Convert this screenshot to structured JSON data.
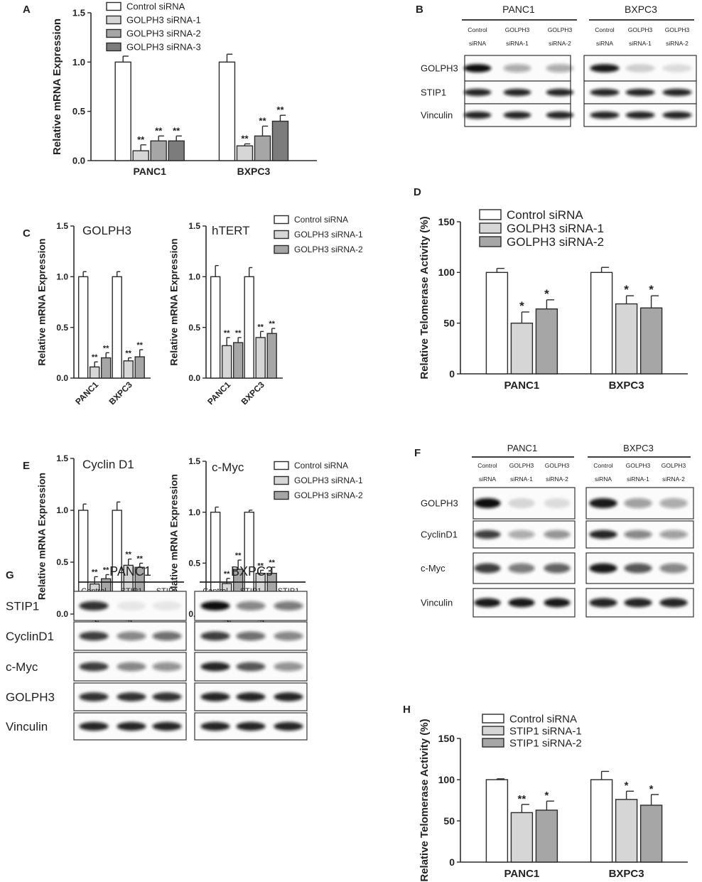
{
  "colors": {
    "control": "#ffffff",
    "sirna1": "#d6d6d6",
    "sirna2": "#a6a6a6",
    "sirna3": "#7c7c7c",
    "stroke": "#2b2b2b"
  },
  "chart_data": [
    {
      "id": "A",
      "type": "bar",
      "ylabel": "Relative mRNA Expression",
      "categories": [
        "PANC1",
        "BXPC3"
      ],
      "ylim": [
        0,
        1.5
      ],
      "yticks": [
        "0.0",
        "0.5",
        "1.0",
        "1.5"
      ],
      "legend": [
        "Control siRNA",
        "GOLPH3 siRNA-1",
        "GOLPH3 siRNA-2",
        "GOLPH3 siRNA-3"
      ],
      "series": [
        {
          "name": "Control siRNA",
          "values": [
            1.0,
            1.0
          ],
          "errors": [
            0.06,
            0.08
          ],
          "stars": [
            "",
            ""
          ]
        },
        {
          "name": "GOLPH3 siRNA-1",
          "values": [
            0.1,
            0.15
          ],
          "errors": [
            0.06,
            0.02
          ],
          "stars": [
            "**",
            "**"
          ]
        },
        {
          "name": "GOLPH3 siRNA-2",
          "values": [
            0.2,
            0.25
          ],
          "errors": [
            0.05,
            0.1
          ],
          "stars": [
            "**",
            "**"
          ]
        },
        {
          "name": "GOLPH3 siRNA-3",
          "values": [
            0.2,
            0.4
          ],
          "errors": [
            0.05,
            0.06
          ],
          "stars": [
            "**",
            "**"
          ]
        }
      ]
    },
    {
      "id": "C1",
      "type": "bar",
      "title": "GOLPH3",
      "ylabel": "Relative mRNA Expression",
      "categories": [
        "PANC1",
        "BXPC3"
      ],
      "ylim": [
        0,
        1.5
      ],
      "yticks": [
        "0.0",
        "0.5",
        "1.0",
        "1.5"
      ],
      "series": [
        {
          "name": "Control siRNA",
          "values": [
            1.0,
            1.0
          ],
          "errors": [
            0.05,
            0.05
          ],
          "stars": [
            "",
            ""
          ]
        },
        {
          "name": "GOLPH3 siRNA-1",
          "values": [
            0.11,
            0.17
          ],
          "errors": [
            0.05,
            0.03
          ],
          "stars": [
            "**",
            "**"
          ]
        },
        {
          "name": "GOLPH3 siRNA-2",
          "values": [
            0.2,
            0.21
          ],
          "errors": [
            0.05,
            0.07
          ],
          "stars": [
            "**",
            "**"
          ]
        }
      ]
    },
    {
      "id": "C2",
      "type": "bar",
      "title": "hTERT",
      "ylabel": "Relative mRNA Expression",
      "categories": [
        "PANC1",
        "BXPC3"
      ],
      "ylim": [
        0,
        1.5
      ],
      "yticks": [
        "0.0",
        "0.5",
        "1.0",
        "1.5"
      ],
      "legend": [
        "Control siRNA",
        "GOLPH3 siRNA-1",
        "GOLPH3 siRNA-2"
      ],
      "series": [
        {
          "name": "Control siRNA",
          "values": [
            1.0,
            1.0
          ],
          "errors": [
            0.11,
            0.09
          ],
          "stars": [
            "",
            ""
          ]
        },
        {
          "name": "GOLPH3 siRNA-1",
          "values": [
            0.32,
            0.4
          ],
          "errors": [
            0.08,
            0.06
          ],
          "stars": [
            "**",
            "**"
          ]
        },
        {
          "name": "GOLPH3 siRNA-2",
          "values": [
            0.35,
            0.44
          ],
          "errors": [
            0.05,
            0.05
          ],
          "stars": [
            "**",
            "**"
          ]
        }
      ]
    },
    {
      "id": "D",
      "type": "bar",
      "ylabel": "Relative Telomerase Activity (%)",
      "categories": [
        "PANC1",
        "BXPC3"
      ],
      "ylim": [
        0,
        150
      ],
      "yticks": [
        "0",
        "50",
        "100",
        "150"
      ],
      "legend": [
        "Control siRNA",
        "GOLPH3 siRNA-1",
        "GOLPH3 siRNA-2"
      ],
      "series": [
        {
          "name": "Control siRNA",
          "values": [
            100,
            100
          ],
          "errors": [
            4,
            5
          ],
          "stars": [
            "",
            ""
          ]
        },
        {
          "name": "GOLPH3 siRNA-1",
          "values": [
            50,
            69
          ],
          "errors": [
            11,
            8
          ],
          "stars": [
            "*",
            "*"
          ]
        },
        {
          "name": "GOLPH3 siRNA-2",
          "values": [
            64,
            65
          ],
          "errors": [
            9,
            12
          ],
          "stars": [
            "*",
            "*"
          ]
        }
      ]
    },
    {
      "id": "E1",
      "type": "bar",
      "title": "Cyclin D1",
      "ylabel": "Relative mRNA Expression",
      "categories": [
        "PANC1",
        "BXPC3"
      ],
      "ylim": [
        0,
        1.5
      ],
      "yticks": [
        "0.0",
        "0.5",
        "1.0",
        "1.5"
      ],
      "series": [
        {
          "name": "Control siRNA",
          "values": [
            1.0,
            1.0
          ],
          "errors": [
            0.06,
            0.08
          ],
          "stars": [
            "",
            ""
          ]
        },
        {
          "name": "GOLPH3 siRNA-1",
          "values": [
            0.29,
            0.47
          ],
          "errors": [
            0.07,
            0.06
          ],
          "stars": [
            "**",
            "**"
          ]
        },
        {
          "name": "GOLPH3 siRNA-2",
          "values": [
            0.34,
            0.45
          ],
          "errors": [
            0.04,
            0.04
          ],
          "stars": [
            "**",
            "**"
          ]
        }
      ]
    },
    {
      "id": "E2",
      "type": "bar",
      "title": "c-Myc",
      "ylabel": "Relative mRNA Expression",
      "categories": [
        "PANC1",
        "BXPC3"
      ],
      "ylim": [
        0,
        1.5
      ],
      "yticks": [
        "0.0",
        "0.5",
        "1.0",
        "1.5"
      ],
      "legend": [
        "Control siRNA",
        "GOLPH3 siRNA-1",
        "GOLPH3 siRNA-2"
      ],
      "series": [
        {
          "name": "Control siRNA",
          "values": [
            1.0,
            1.0
          ],
          "errors": [
            0.05,
            0.02
          ],
          "stars": [
            "",
            ""
          ]
        },
        {
          "name": "GOLPH3 siRNA-1",
          "values": [
            0.3,
            0.4
          ],
          "errors": [
            0.05,
            0.03
          ],
          "stars": [
            "**",
            "**"
          ]
        },
        {
          "name": "GOLPH3 siRNA-2",
          "values": [
            0.44,
            0.4
          ],
          "errors": [
            0.09,
            0.06
          ],
          "stars": [
            "**",
            "**"
          ]
        }
      ]
    },
    {
      "id": "H",
      "type": "bar",
      "ylabel": "Relative Telomerase Activity (%)",
      "categories": [
        "PANC1",
        "BXPC3"
      ],
      "ylim": [
        0,
        150
      ],
      "yticks": [
        "0",
        "50",
        "100",
        "150"
      ],
      "legend": [
        "Control siRNA",
        "STIP1 siRNA-1",
        "STIP1 siRNA-2"
      ],
      "series": [
        {
          "name": "Control siRNA",
          "values": [
            100,
            100
          ],
          "errors": [
            1,
            10
          ],
          "stars": [
            "",
            ""
          ]
        },
        {
          "name": "STIP1 siRNA-1",
          "values": [
            60,
            76
          ],
          "errors": [
            10,
            10
          ],
          "stars": [
            "**",
            "*"
          ]
        },
        {
          "name": "STIP1 siRNA-2",
          "values": [
            63,
            69
          ],
          "errors": [
            11,
            13
          ],
          "stars": [
            "*",
            "*"
          ]
        }
      ]
    }
  ],
  "blots": [
    {
      "id": "B",
      "cells": [
        "PANC1",
        "BXPC3"
      ],
      "lanes": [
        [
          "Control",
          "siRNA"
        ],
        [
          "GOLPH3",
          "siRNA-1"
        ],
        [
          "GOLPH3",
          "siRNA-2"
        ]
      ],
      "rows": [
        {
          "label": "GOLPH3",
          "panc1": [
            1.0,
            0.35,
            0.35
          ],
          "bxpc3": [
            0.95,
            0.18,
            0.12
          ]
        },
        {
          "label": "STIP1",
          "panc1": [
            0.9,
            0.9,
            0.9
          ],
          "bxpc3": [
            0.9,
            0.9,
            0.9
          ]
        },
        {
          "label": "Vinculin",
          "panc1": [
            0.9,
            0.9,
            0.9
          ],
          "bxpc3": [
            0.9,
            0.9,
            0.9
          ]
        }
      ]
    },
    {
      "id": "F",
      "cells": [
        "PANC1",
        "BXPC3"
      ],
      "lanes": [
        [
          "Control",
          "siRNA"
        ],
        [
          "GOLPH3",
          "siRNA-1"
        ],
        [
          "GOLPH3",
          "siRNA-2"
        ]
      ],
      "rows": [
        {
          "label": "GOLPH3",
          "panc1": [
            1.0,
            0.15,
            0.12
          ],
          "bxpc3": [
            0.95,
            0.4,
            0.35
          ]
        },
        {
          "label": "CyclinD1",
          "panc1": [
            0.8,
            0.35,
            0.45
          ],
          "bxpc3": [
            0.9,
            0.5,
            0.4
          ]
        },
        {
          "label": "c-Myc",
          "panc1": [
            0.8,
            0.55,
            0.65
          ],
          "bxpc3": [
            0.95,
            0.7,
            0.5
          ]
        },
        {
          "label": "Vinculin",
          "panc1": [
            0.95,
            0.95,
            0.95
          ],
          "bxpc3": [
            0.9,
            0.9,
            0.9
          ]
        }
      ]
    },
    {
      "id": "G",
      "cells": [
        "PANC1",
        "BXPC3"
      ],
      "lanes": [
        [
          "Control",
          "siRNA"
        ],
        [
          "STIP1",
          "siRNA-1"
        ],
        [
          "STIP1",
          "siRNA-2"
        ]
      ],
      "rows": [
        {
          "label": "STIP1",
          "panc1": [
            0.85,
            0.08,
            0.06
          ],
          "bxpc3": [
            1.0,
            0.5,
            0.55
          ]
        },
        {
          "label": "CyclinD1",
          "panc1": [
            0.8,
            0.5,
            0.6
          ],
          "bxpc3": [
            0.8,
            0.6,
            0.5
          ]
        },
        {
          "label": "c-Myc",
          "panc1": [
            0.8,
            0.5,
            0.45
          ],
          "bxpc3": [
            0.9,
            0.7,
            0.45
          ]
        },
        {
          "label": "GOLPH3",
          "panc1": [
            0.85,
            0.85,
            0.85
          ],
          "bxpc3": [
            0.9,
            0.9,
            0.9
          ]
        },
        {
          "label": "Vinculin",
          "panc1": [
            0.9,
            0.9,
            0.9
          ],
          "bxpc3": [
            0.9,
            0.9,
            0.9
          ]
        }
      ]
    }
  ]
}
